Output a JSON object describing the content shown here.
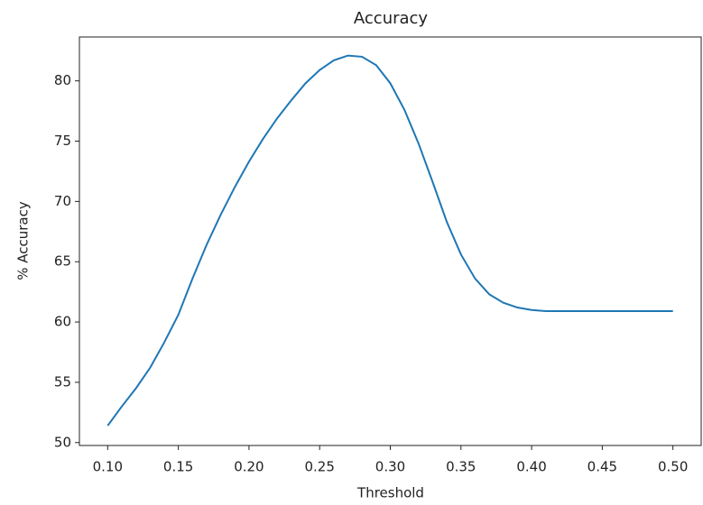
{
  "chart_data": {
    "type": "line",
    "title": "Accuracy",
    "x_label": "Threshold",
    "y_label": "% Accuracy",
    "x": [
      0.1,
      0.11,
      0.12,
      0.13,
      0.14,
      0.15,
      0.16,
      0.17,
      0.18,
      0.19,
      0.2,
      0.21,
      0.22,
      0.23,
      0.24,
      0.25,
      0.26,
      0.27,
      0.28,
      0.29,
      0.3,
      0.31,
      0.32,
      0.33,
      0.34,
      0.35,
      0.36,
      0.37,
      0.38,
      0.39,
      0.4,
      0.41,
      0.42,
      0.43,
      0.44,
      0.45,
      0.46,
      0.47,
      0.48,
      0.49,
      0.5
    ],
    "series": [
      {
        "name": "Accuracy",
        "color": "#1f77b4",
        "values": [
          51.4,
          53.0,
          54.5,
          56.2,
          58.3,
          60.6,
          63.6,
          66.4,
          68.9,
          71.2,
          73.3,
          75.2,
          76.9,
          78.4,
          79.8,
          80.9,
          81.7,
          82.1,
          82.0,
          81.3,
          79.8,
          77.6,
          74.8,
          71.6,
          68.3,
          65.6,
          63.6,
          62.3,
          61.6,
          61.2,
          61.0,
          60.9,
          60.9,
          60.9,
          60.9,
          60.9,
          60.9,
          60.9,
          60.9,
          60.9,
          60.9
        ]
      }
    ],
    "xlim": [
      0.08,
      0.52
    ],
    "ylim": [
      49.76,
      83.64
    ],
    "xticks": [
      {
        "value": 0.1,
        "label": "0.10"
      },
      {
        "value": 0.15,
        "label": "0.15"
      },
      {
        "value": 0.2,
        "label": "0.20"
      },
      {
        "value": 0.25,
        "label": "0.25"
      },
      {
        "value": 0.3,
        "label": "0.30"
      },
      {
        "value": 0.35,
        "label": "0.35"
      },
      {
        "value": 0.4,
        "label": "0.40"
      },
      {
        "value": 0.45,
        "label": "0.45"
      },
      {
        "value": 0.5,
        "label": "0.50"
      }
    ],
    "yticks": [
      50,
      55,
      60,
      65,
      70,
      75,
      80
    ],
    "grid": false
  }
}
